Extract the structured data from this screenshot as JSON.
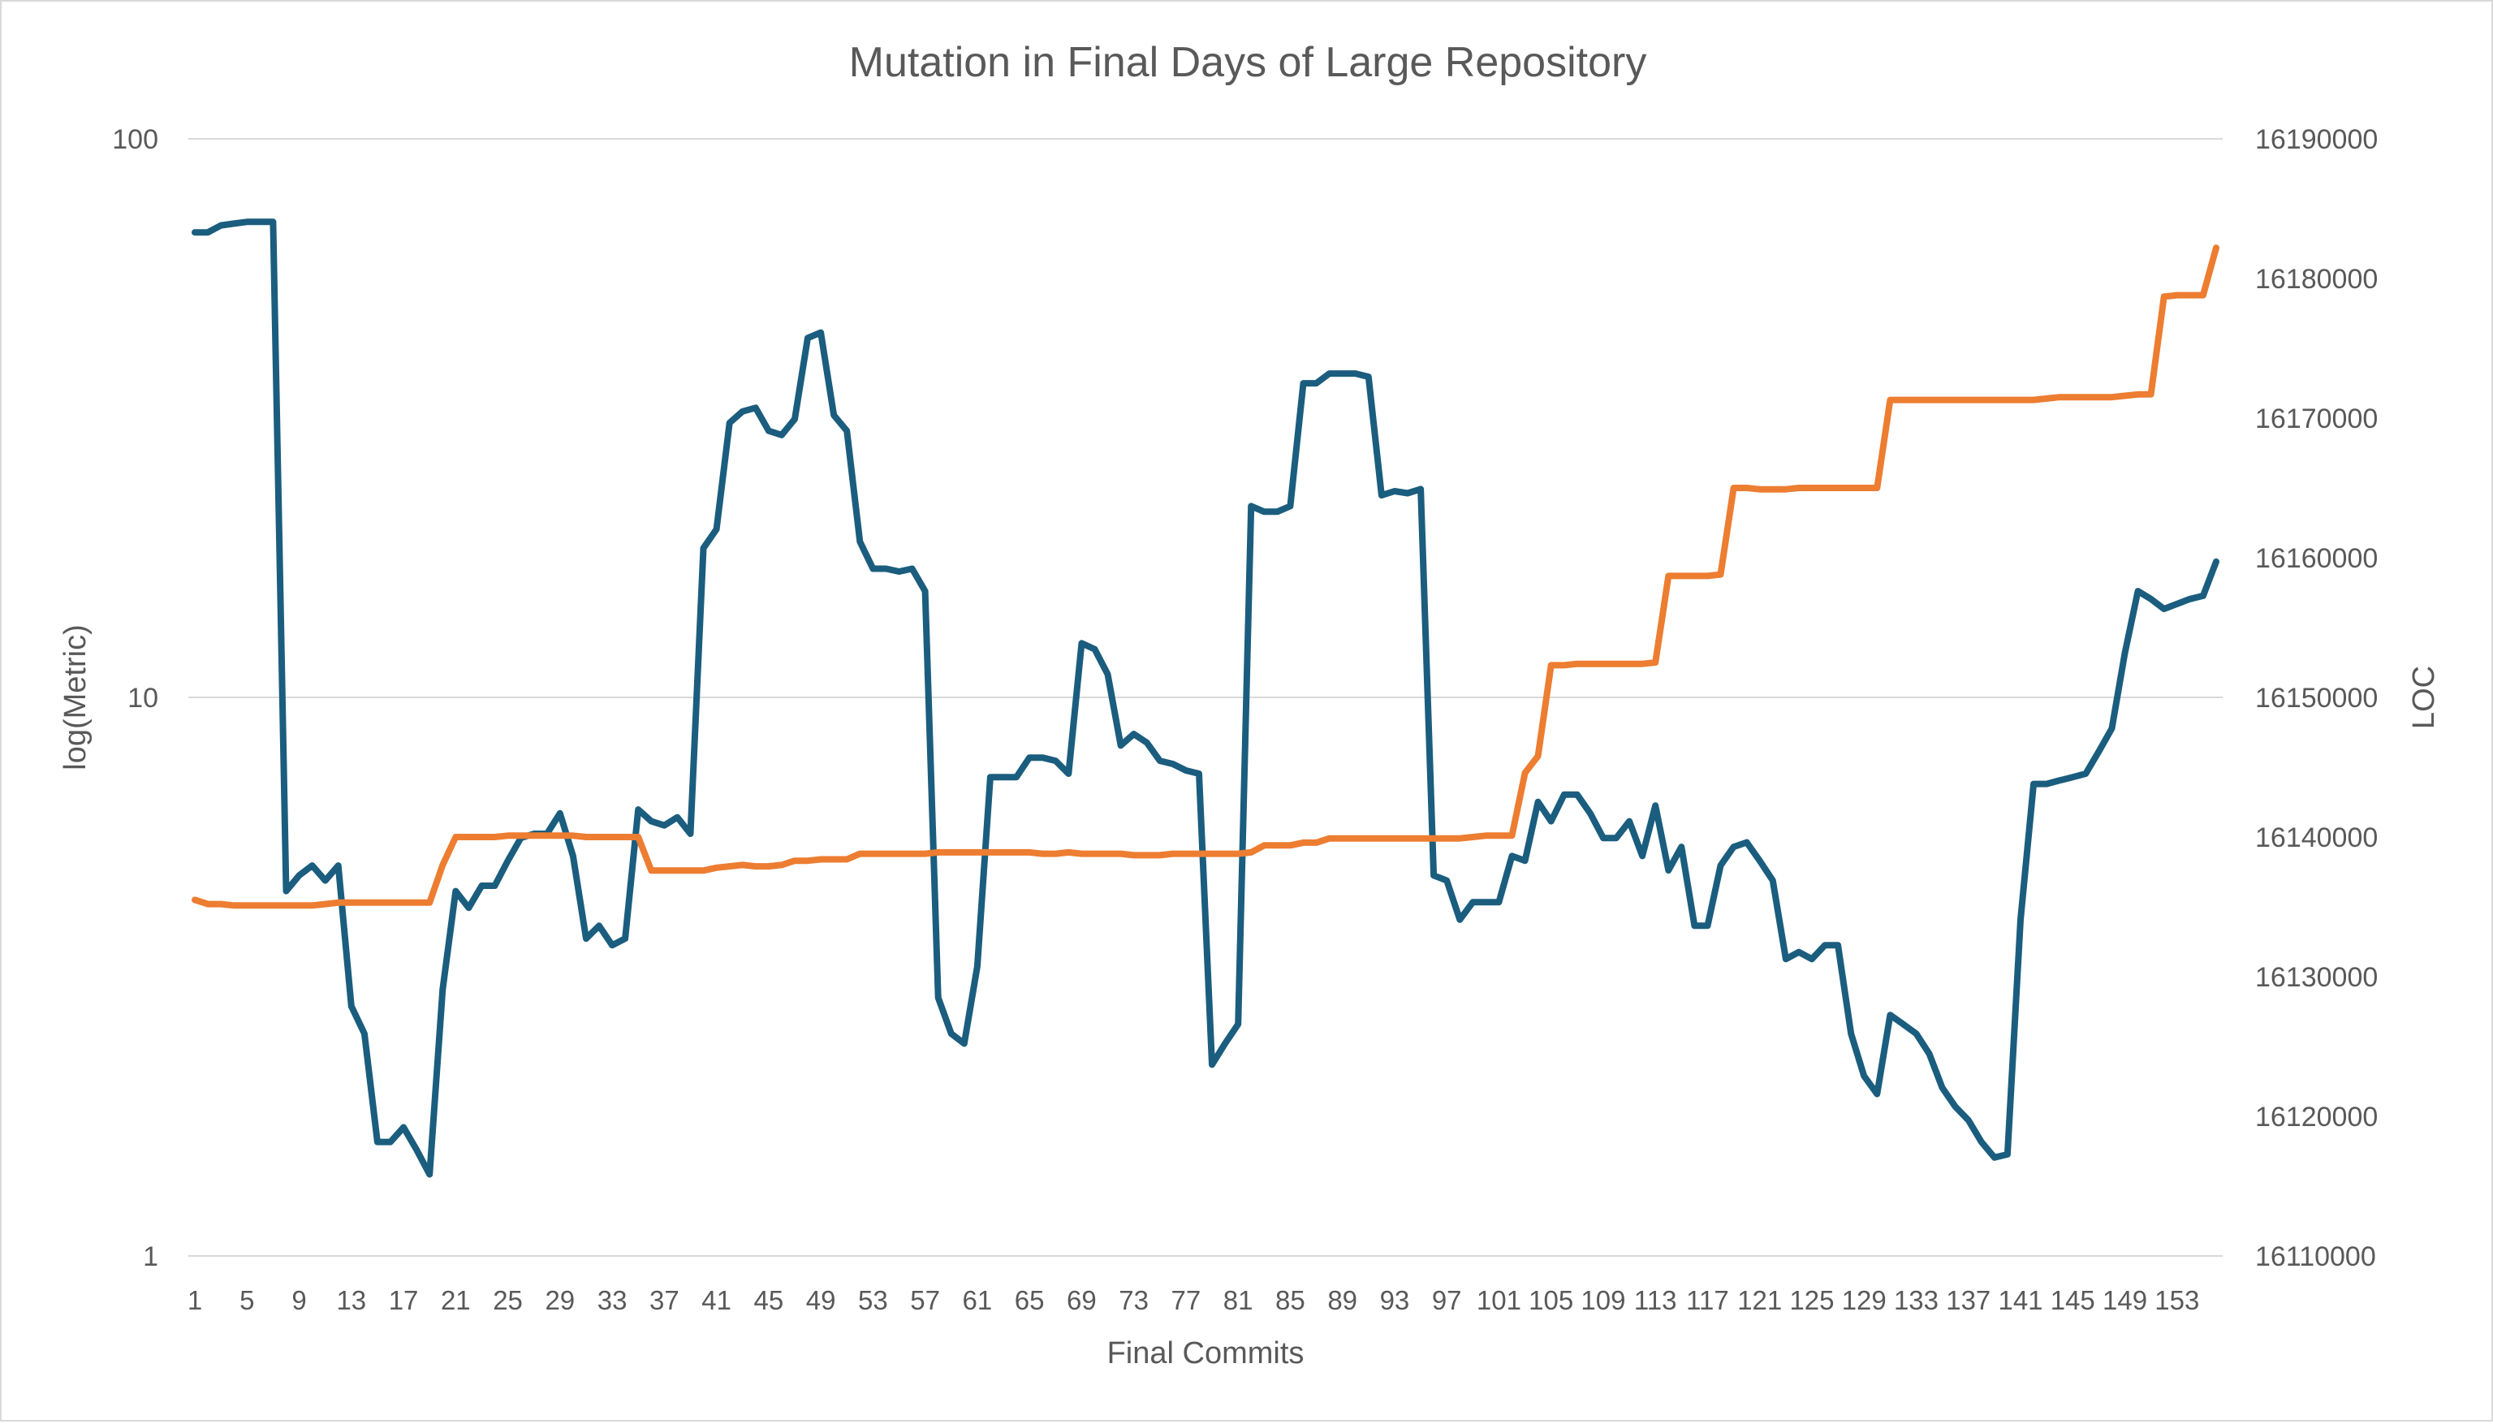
{
  "chart_data": {
    "type": "line",
    "title": "Mutation in Final Days of Large Repository",
    "xlabel": "Final Commits",
    "ylabel": "log(Metric)",
    "y2label": "LOC",
    "x_start": 1,
    "x_end": 156,
    "x_tick_step": 4,
    "y_scale": "log",
    "y_ticks": [
      "1",
      "10",
      "100"
    ],
    "y_range": [
      1,
      100
    ],
    "y2_ticks": [
      "16110000",
      "16120000",
      "16130000",
      "16140000",
      "16150000",
      "16160000",
      "16170000",
      "16180000",
      "16190000"
    ],
    "y2_range": [
      16110000,
      16190000
    ],
    "grid": "horizontal",
    "legend": "none",
    "series": [
      {
        "axis": "left",
        "color": "#1b5d7e",
        "values": [
          68,
          68,
          70,
          70.5,
          71,
          71,
          71,
          4.5,
          4.8,
          5,
          4.7,
          5,
          2.8,
          2.5,
          1.6,
          1.6,
          1.7,
          1.55,
          1.4,
          3,
          4.5,
          4.2,
          4.6,
          4.6,
          5.1,
          5.6,
          5.7,
          5.7,
          6.2,
          5.2,
          3.7,
          3.9,
          3.6,
          3.7,
          6.3,
          6,
          5.9,
          6.1,
          5.7,
          18.5,
          20,
          31,
          32.5,
          33,
          30,
          29.5,
          31.5,
          44,
          45,
          32,
          30,
          19,
          17,
          17,
          16.8,
          17,
          15.5,
          2.9,
          2.5,
          2.4,
          3.3,
          7.2,
          7.2,
          7.2,
          7.8,
          7.8,
          7.7,
          7.3,
          12.5,
          12.2,
          11,
          8.2,
          8.6,
          8.3,
          7.7,
          7.6,
          7.4,
          7.3,
          2.2,
          2.4,
          2.6,
          22,
          21.5,
          21.5,
          22,
          36.5,
          36.5,
          38,
          38,
          38,
          37.5,
          23,
          23.4,
          23.2,
          23.6,
          4.8,
          4.7,
          4,
          4.3,
          4.3,
          4.3,
          5.2,
          5.1,
          6.5,
          6,
          6.7,
          6.7,
          6.2,
          5.6,
          5.6,
          6,
          5.2,
          6.4,
          4.9,
          5.4,
          3.9,
          3.9,
          5,
          5.4,
          5.5,
          5.1,
          4.7,
          3.4,
          3.5,
          3.4,
          3.6,
          3.6,
          2.5,
          2.1,
          1.95,
          2.7,
          2.6,
          2.5,
          2.3,
          2,
          1.85,
          1.75,
          1.6,
          1.5,
          1.52,
          4,
          7,
          7,
          7.1,
          7.2,
          7.3,
          8,
          8.8,
          12,
          15.5,
          15,
          14.4,
          14.7,
          15,
          15.2,
          17.5
        ]
      },
      {
        "axis": "right",
        "color": "#ed7d31",
        "values": [
          16135500,
          16135200,
          16135200,
          16135100,
          16135100,
          16135100,
          16135100,
          16135100,
          16135100,
          16135100,
          16135200,
          16135300,
          16135300,
          16135300,
          16135300,
          16135300,
          16135300,
          16135300,
          16135300,
          16138000,
          16140000,
          16140000,
          16140000,
          16140000,
          16140100,
          16140100,
          16140100,
          16140100,
          16140100,
          16140100,
          16140000,
          16140000,
          16140000,
          16140000,
          16140000,
          16137600,
          16137600,
          16137600,
          16137600,
          16137600,
          16137800,
          16137900,
          16138000,
          16137900,
          16137900,
          16138000,
          16138300,
          16138300,
          16138400,
          16138400,
          16138400,
          16138800,
          16138800,
          16138800,
          16138800,
          16138800,
          16138800,
          16138900,
          16138900,
          16138900,
          16138900,
          16138900,
          16138900,
          16138900,
          16138900,
          16138800,
          16138800,
          16138900,
          16138800,
          16138800,
          16138800,
          16138800,
          16138700,
          16138700,
          16138700,
          16138800,
          16138800,
          16138800,
          16138800,
          16138800,
          16138800,
          16138900,
          16139400,
          16139400,
          16139400,
          16139600,
          16139600,
          16139900,
          16139900,
          16139900,
          16139900,
          16139900,
          16139900,
          16139900,
          16139900,
          16139900,
          16139900,
          16139900,
          16140000,
          16140100,
          16140100,
          16140100,
          16144600,
          16145800,
          16152300,
          16152300,
          16152400,
          16152400,
          16152400,
          16152400,
          16152400,
          16152400,
          16152500,
          16158700,
          16158700,
          16158700,
          16158700,
          16158800,
          16165000,
          16165000,
          16164900,
          16164900,
          16164900,
          16165000,
          16165000,
          16165000,
          16165000,
          16165000,
          16165000,
          16165000,
          16171300,
          16171300,
          16171300,
          16171300,
          16171300,
          16171300,
          16171300,
          16171300,
          16171300,
          16171300,
          16171300,
          16171300,
          16171400,
          16171500,
          16171500,
          16171500,
          16171500,
          16171500,
          16171600,
          16171700,
          16171700,
          16178700,
          16178800,
          16178800,
          16178800,
          16182200
        ]
      }
    ]
  }
}
